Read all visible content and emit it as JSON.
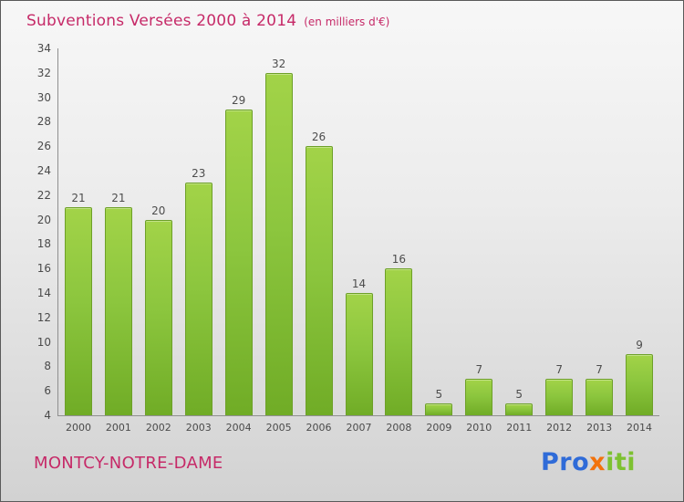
{
  "header": {
    "title": "Subventions Versées 2000 à 2014",
    "subtitle": "(en milliers d'€)"
  },
  "footer": {
    "name": "MONTCY-NOTRE-DAME"
  },
  "logo": {
    "part1": "Pro",
    "part2": "x",
    "part3": "iti"
  },
  "colors": {
    "accent_pink": "#c62a68",
    "bar_green": "#8cc63e",
    "bar_green_dark": "#70ac26",
    "logo_blue": "#2f6bd8",
    "logo_orange": "#f2720c",
    "logo_green": "#7dc131",
    "axis_gray": "#8f8f8f",
    "label_gray": "#4a4a4a"
  },
  "chart_data": {
    "type": "bar",
    "title": "Subventions Versées 2000 à 2014",
    "subtitle": "(en milliers d'€)",
    "categories": [
      "2000",
      "2001",
      "2002",
      "2003",
      "2004",
      "2005",
      "2006",
      "2007",
      "2008",
      "2009",
      "2010",
      "2011",
      "2012",
      "2013",
      "2014"
    ],
    "values": [
      21,
      21,
      20,
      23,
      29,
      32,
      26,
      14,
      16,
      5,
      7,
      5,
      7,
      7,
      9
    ],
    "xlabel": "",
    "ylabel": "",
    "ylim": [
      4,
      34
    ],
    "ytick_step": 2,
    "grid": false,
    "legend_position": "none",
    "value_labels": true
  }
}
